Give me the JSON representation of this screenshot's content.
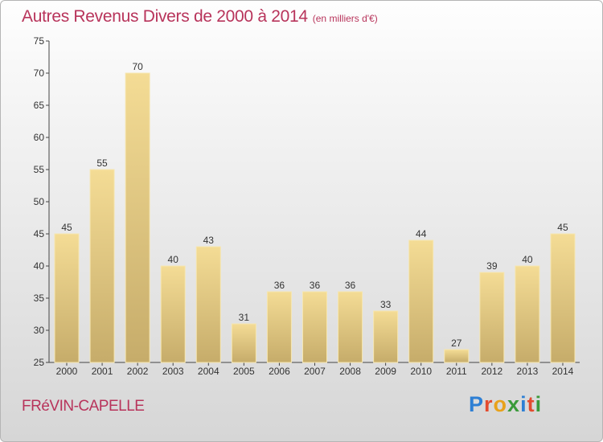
{
  "header": {
    "title": "Autres Revenus Divers de 2000 à 2014",
    "unit": "(en milliers d'€)"
  },
  "footer": {
    "commune": "FRéVIN-CAPELLE",
    "logo_letters": [
      "P",
      "r",
      "o",
      "x",
      "i",
      "t",
      "i"
    ]
  },
  "colors": {
    "title": "#b8345b",
    "bar_light": "#f4dc95",
    "bar_dark": "#c6ac6a",
    "logo": [
      "#2d7fd4",
      "#e34b2f",
      "#e8a21b",
      "#3a9a3a",
      "#2d7fd4",
      "#e34b2f",
      "#3a9a3a"
    ]
  },
  "chart_data": {
    "type": "bar",
    "title": "Autres Revenus Divers de 2000 à 2014",
    "xlabel": "",
    "ylabel": "",
    "categories": [
      "2000",
      "2001",
      "2002",
      "2003",
      "2004",
      "2005",
      "2006",
      "2007",
      "2008",
      "2009",
      "2010",
      "2011",
      "2012",
      "2013",
      "2014"
    ],
    "values": [
      45,
      55,
      70,
      40,
      43,
      31,
      36,
      36,
      36,
      33,
      44,
      27,
      39,
      40,
      45
    ],
    "ylim": [
      25,
      75
    ],
    "yticks": [
      25,
      30,
      35,
      40,
      45,
      50,
      55,
      60,
      65,
      70,
      75
    ],
    "grid": false,
    "legend": "none"
  }
}
